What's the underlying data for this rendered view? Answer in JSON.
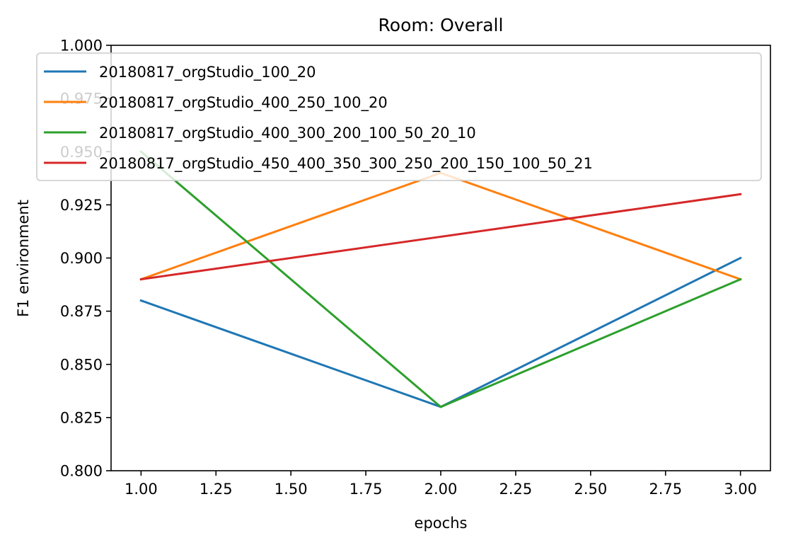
{
  "chart_data": {
    "type": "line",
    "title": "Room: Overall",
    "xlabel": "epochs",
    "ylabel": "F1 environment",
    "xlim": [
      0.9,
      3.1
    ],
    "ylim": [
      0.8,
      1.0
    ],
    "x_ticks": [
      1.0,
      1.25,
      1.5,
      1.75,
      2.0,
      2.25,
      2.5,
      2.75,
      3.0
    ],
    "x_tick_labels": [
      "1.00",
      "1.25",
      "1.50",
      "1.75",
      "2.00",
      "2.25",
      "2.50",
      "2.75",
      "3.00"
    ],
    "y_ticks": [
      0.8,
      0.825,
      0.85,
      0.875,
      0.9,
      0.925,
      0.95,
      0.975,
      1.0
    ],
    "y_tick_labels": [
      "0.800",
      "0.825",
      "0.850",
      "0.875",
      "0.900",
      "0.925",
      "0.950",
      "0.975",
      "1.000"
    ],
    "grid": false,
    "legend_position": "top",
    "x": [
      1.0,
      2.0,
      3.0
    ],
    "series": [
      {
        "name": "20180817_orgStudio_100_20",
        "color": "#1f77b4",
        "values": [
          0.88,
          0.83,
          0.9
        ]
      },
      {
        "name": "20180817_orgStudio_400_250_100_20",
        "color": "#ff7f0e",
        "values": [
          0.89,
          0.94,
          0.89
        ]
      },
      {
        "name": "20180817_orgStudio_400_300_200_100_50_20_10",
        "color": "#2ca02c",
        "values": [
          0.95,
          0.83,
          0.89
        ]
      },
      {
        "name": "20180817_orgStudio_450_400_350_300_250_200_150_100_50_21",
        "color": "#d62728",
        "values": [
          0.89,
          0.91,
          0.93
        ]
      }
    ]
  }
}
